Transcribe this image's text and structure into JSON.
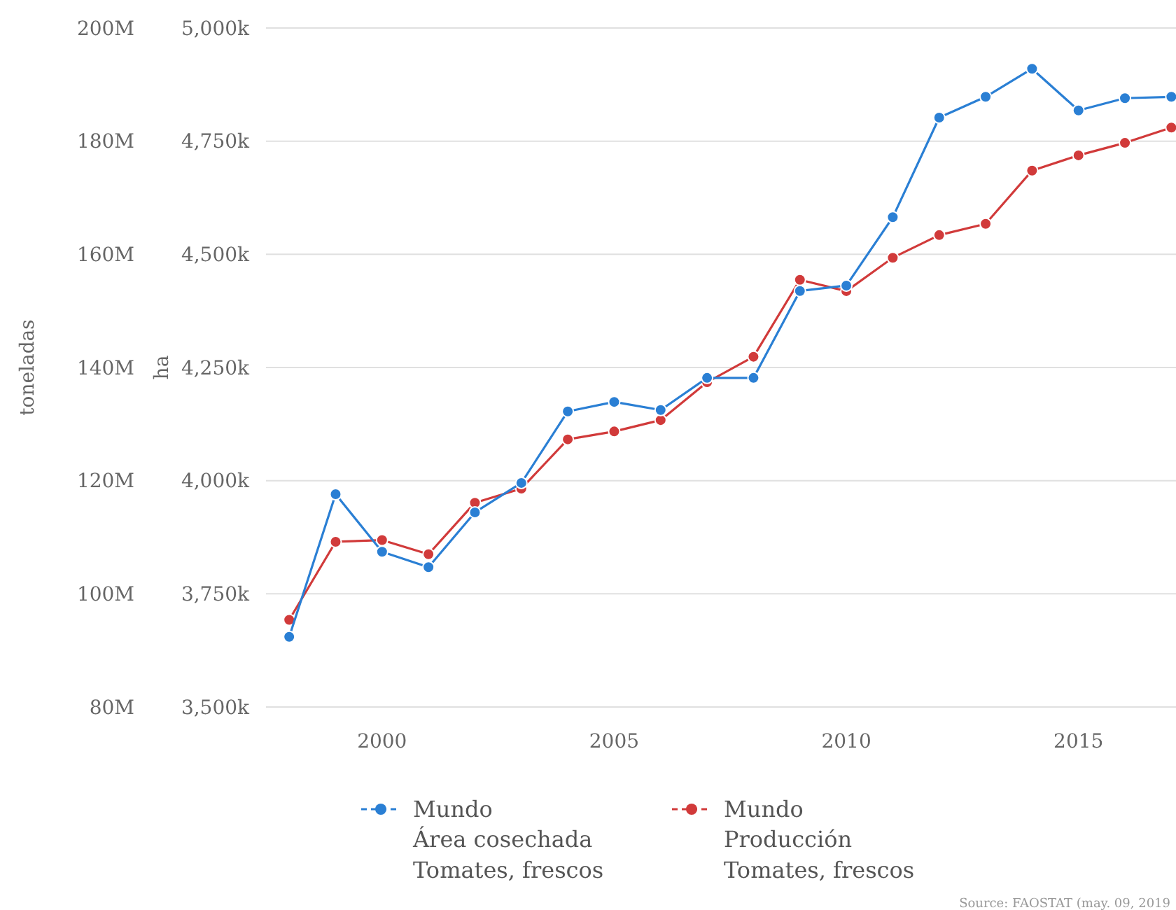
{
  "chart_data": {
    "type": "line",
    "ylabel": "ha",
    "y2label": "toneladas",
    "x": [
      1998,
      1999,
      2000,
      2001,
      2002,
      2003,
      2004,
      2005,
      2006,
      2007,
      2008,
      2009,
      2010,
      2011,
      2012,
      2013,
      2014,
      2015,
      2016,
      2017
    ],
    "xlim": [
      1997.5,
      2017.1
    ],
    "xticks": [
      2000,
      2005,
      2010,
      2015
    ],
    "y2lim": [
      80000000,
      200000000
    ],
    "y2ticks": [
      {
        "value": 80000000,
        "label": "80M"
      },
      {
        "value": 100000000,
        "label": "100M"
      },
      {
        "value": 120000000,
        "label": "120M"
      },
      {
        "value": 140000000,
        "label": "140M"
      },
      {
        "value": 160000000,
        "label": "160M"
      },
      {
        "value": 180000000,
        "label": "180M"
      },
      {
        "value": 200000000,
        "label": "200M"
      }
    ],
    "ylim": [
      3500000,
      5000000
    ],
    "yticks": [
      {
        "value": 3500000,
        "label": "3,500k"
      },
      {
        "value": 3750000,
        "label": "3,750k"
      },
      {
        "value": 4000000,
        "label": "4,000k"
      },
      {
        "value": 4250000,
        "label": "4,250k"
      },
      {
        "value": 4500000,
        "label": "4,500k"
      },
      {
        "value": 4750000,
        "label": "4,750k"
      },
      {
        "value": 5000000,
        "label": "5,000k"
      }
    ],
    "series": [
      {
        "name": "Mundo\nÁrea cosechada\nTomates, frescos",
        "color": "#2a7fd4",
        "axis": "y",
        "values": [
          3655000,
          3970000,
          3843000,
          3809000,
          3930000,
          3995000,
          4153000,
          4174000,
          4156000,
          4227000,
          4227000,
          4419000,
          4431000,
          4582000,
          4802000,
          4848000,
          4910000,
          4818000,
          4845000,
          4848000
        ]
      },
      {
        "name": "Mundo\nProducción\nTomates, frescos",
        "color": "#d13a3a",
        "axis": "y2",
        "values": [
          95400000,
          109200000,
          109500000,
          107000000,
          116100000,
          118600000,
          127300000,
          128700000,
          130700000,
          137400000,
          141900000,
          155500000,
          153500000,
          159400000,
          163400000,
          165400000,
          174800000,
          177500000,
          179700000,
          182400000
        ]
      }
    ],
    "grid": "y",
    "legend": "bottom",
    "marker": "circle",
    "line_style": "solid",
    "annotations": [
      "Source: FAOSTAT (may. 09, 2019"
    ]
  }
}
